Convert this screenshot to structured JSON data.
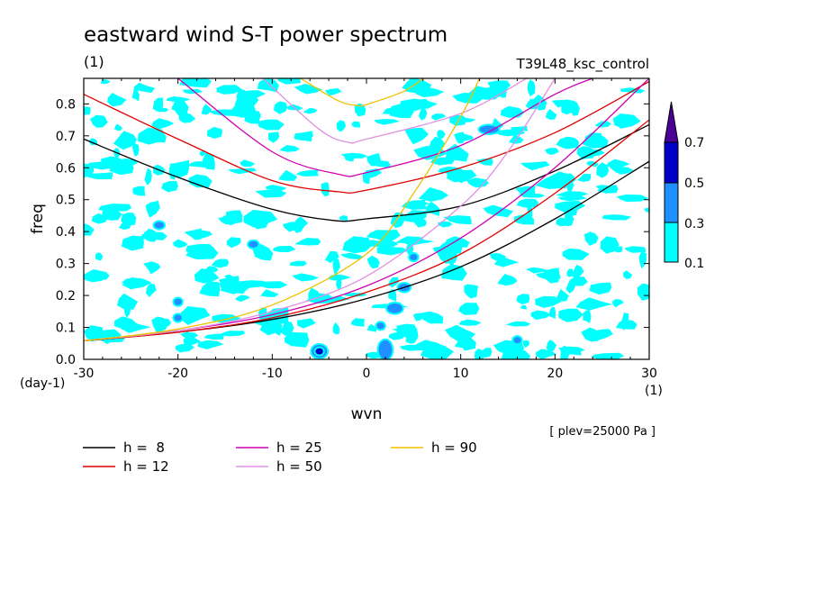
{
  "chart_data": {
    "type": "line",
    "title": "eastward wind S-T power spectrum",
    "subtitle_left": "(1)",
    "subtitle_right": "T39L48_ksc_control",
    "xlabel": "wvn",
    "ylabel": "freq",
    "y_unit": "(day-1)",
    "x_unit": "(1)",
    "annotation": "[ plev=25000 Pa ]",
    "xlim": [
      -30,
      30
    ],
    "ylim": [
      0,
      0.88
    ],
    "x_ticks": [
      "-30",
      "-20",
      "-10",
      "0",
      "10",
      "20",
      "30"
    ],
    "y_ticks": [
      "0.0",
      "0.1",
      "0.2",
      "0.3",
      "0.4",
      "0.5",
      "0.6",
      "0.7",
      "0.8"
    ],
    "colorbar": {
      "levels": [
        "0.1",
        "0.3",
        "0.5",
        "0.7"
      ],
      "colors": [
        "#00ffff",
        "#1e90ff",
        "#0000c8",
        "#4b0096"
      ]
    },
    "series": [
      {
        "name": "h = 8",
        "color": "#000000",
        "kind": "wavemode",
        "x": [
          -30,
          -20,
          -10,
          -3.5,
          0,
          10,
          20,
          30
        ],
        "y": [
          0.69,
          0.57,
          0.47,
          0.435,
          0.44,
          0.48,
          0.59,
          0.735
        ]
      },
      {
        "name": "h = 8",
        "color": "#000000",
        "kind": "wavemode",
        "x": [
          -30,
          -20,
          -10,
          0,
          10,
          20,
          30
        ],
        "y": [
          0.058,
          0.085,
          0.125,
          0.19,
          0.29,
          0.44,
          0.62
        ]
      },
      {
        "name": "h = 12",
        "color": "#e00000",
        "kind": "wavemode",
        "x": [
          -30,
          -20,
          -10,
          -3,
          0,
          10,
          20,
          30
        ],
        "y": [
          0.83,
          0.69,
          0.56,
          0.525,
          0.53,
          0.6,
          0.71,
          0.87
        ]
      },
      {
        "name": "h = 12",
        "color": "#e00000",
        "kind": "wavemode",
        "x": [
          -30,
          -20,
          -10,
          0,
          10,
          20,
          30
        ],
        "y": [
          0.058,
          0.085,
          0.13,
          0.21,
          0.33,
          0.52,
          0.75
        ]
      },
      {
        "name": "h = 25",
        "color": "#d000b0",
        "kind": "wavemode",
        "x": [
          -20,
          -10,
          -3,
          0,
          10,
          20,
          24
        ],
        "y": [
          0.88,
          0.65,
          0.58,
          0.585,
          0.67,
          0.83,
          0.88
        ]
      },
      {
        "name": "h = 25",
        "color": "#d000b0",
        "kind": "wavemode",
        "x": [
          -30,
          -20,
          -10,
          0,
          10,
          20,
          30
        ],
        "y": [
          0.058,
          0.09,
          0.14,
          0.23,
          0.38,
          0.6,
          0.88
        ]
      },
      {
        "name": "h = 50",
        "color": "#e090e0",
        "kind": "wavemode",
        "x": [
          -11,
          -5,
          -2,
          0,
          10,
          17
        ],
        "y": [
          0.88,
          0.72,
          0.68,
          0.69,
          0.77,
          0.88
        ]
      },
      {
        "name": "h = 50",
        "color": "#e090e0",
        "kind": "wavemode",
        "x": [
          -30,
          -20,
          -10,
          0,
          10,
          15,
          20
        ],
        "y": [
          0.058,
          0.09,
          0.15,
          0.26,
          0.48,
          0.65,
          0.88
        ]
      },
      {
        "name": "h = 90",
        "color": "#f0c000",
        "kind": "wavemode",
        "x": [
          -7,
          -3,
          -1,
          0,
          4,
          6
        ],
        "y": [
          0.88,
          0.81,
          0.795,
          0.798,
          0.84,
          0.88
        ]
      },
      {
        "name": "h = 90",
        "color": "#f0c000",
        "kind": "wavemode",
        "x": [
          -30,
          -20,
          -10,
          0,
          5,
          10,
          12
        ],
        "y": [
          0.058,
          0.095,
          0.17,
          0.33,
          0.52,
          0.76,
          0.88
        ]
      }
    ],
    "contours": [
      {
        "level": 0.3,
        "x": -5,
        "y": 0.025,
        "rx": 0.8,
        "ry": 0.02
      },
      {
        "level": 0.5,
        "x": -5,
        "y": 0.025,
        "rx": 0.4,
        "ry": 0.01
      },
      {
        "level": 0.3,
        "x": 2,
        "y": 0.03,
        "rx": 0.7,
        "ry": 0.03
      },
      {
        "level": 0.3,
        "x": 3,
        "y": 0.16,
        "rx": 0.8,
        "ry": 0.015
      },
      {
        "level": 0.3,
        "x": 4,
        "y": 0.225,
        "rx": 0.6,
        "ry": 0.012
      },
      {
        "level": 0.3,
        "x": 13,
        "y": 0.72,
        "rx": 1.0,
        "ry": 0.012
      },
      {
        "level": 0.3,
        "x": -22,
        "y": 0.42,
        "rx": 0.5,
        "ry": 0.01
      },
      {
        "level": 0.3,
        "x": -12,
        "y": 0.36,
        "rx": 0.5,
        "ry": 0.01
      },
      {
        "level": 0.3,
        "x": -20,
        "y": 0.13,
        "rx": 0.4,
        "ry": 0.01
      },
      {
        "level": 0.3,
        "x": 5,
        "y": 0.32,
        "rx": 0.4,
        "ry": 0.01
      },
      {
        "level": 0.3,
        "x": 1.5,
        "y": 0.105,
        "rx": 0.4,
        "ry": 0.01
      },
      {
        "level": 0.3,
        "x": -20,
        "y": 0.18,
        "rx": 0.4,
        "ry": 0.01
      },
      {
        "level": 0.3,
        "x": 16,
        "y": 0.06,
        "rx": 0.4,
        "ry": 0.01
      }
    ],
    "noise_threshold": 0.1
  },
  "legend": [
    {
      "label": "h =  8",
      "color": "#000000"
    },
    {
      "label": "h = 12",
      "color": "#e00000"
    },
    {
      "label": "h = 25",
      "color": "#d000b0"
    },
    {
      "label": "h = 50",
      "color": "#e090e0"
    },
    {
      "label": "h = 90",
      "color": "#f0c000"
    }
  ]
}
